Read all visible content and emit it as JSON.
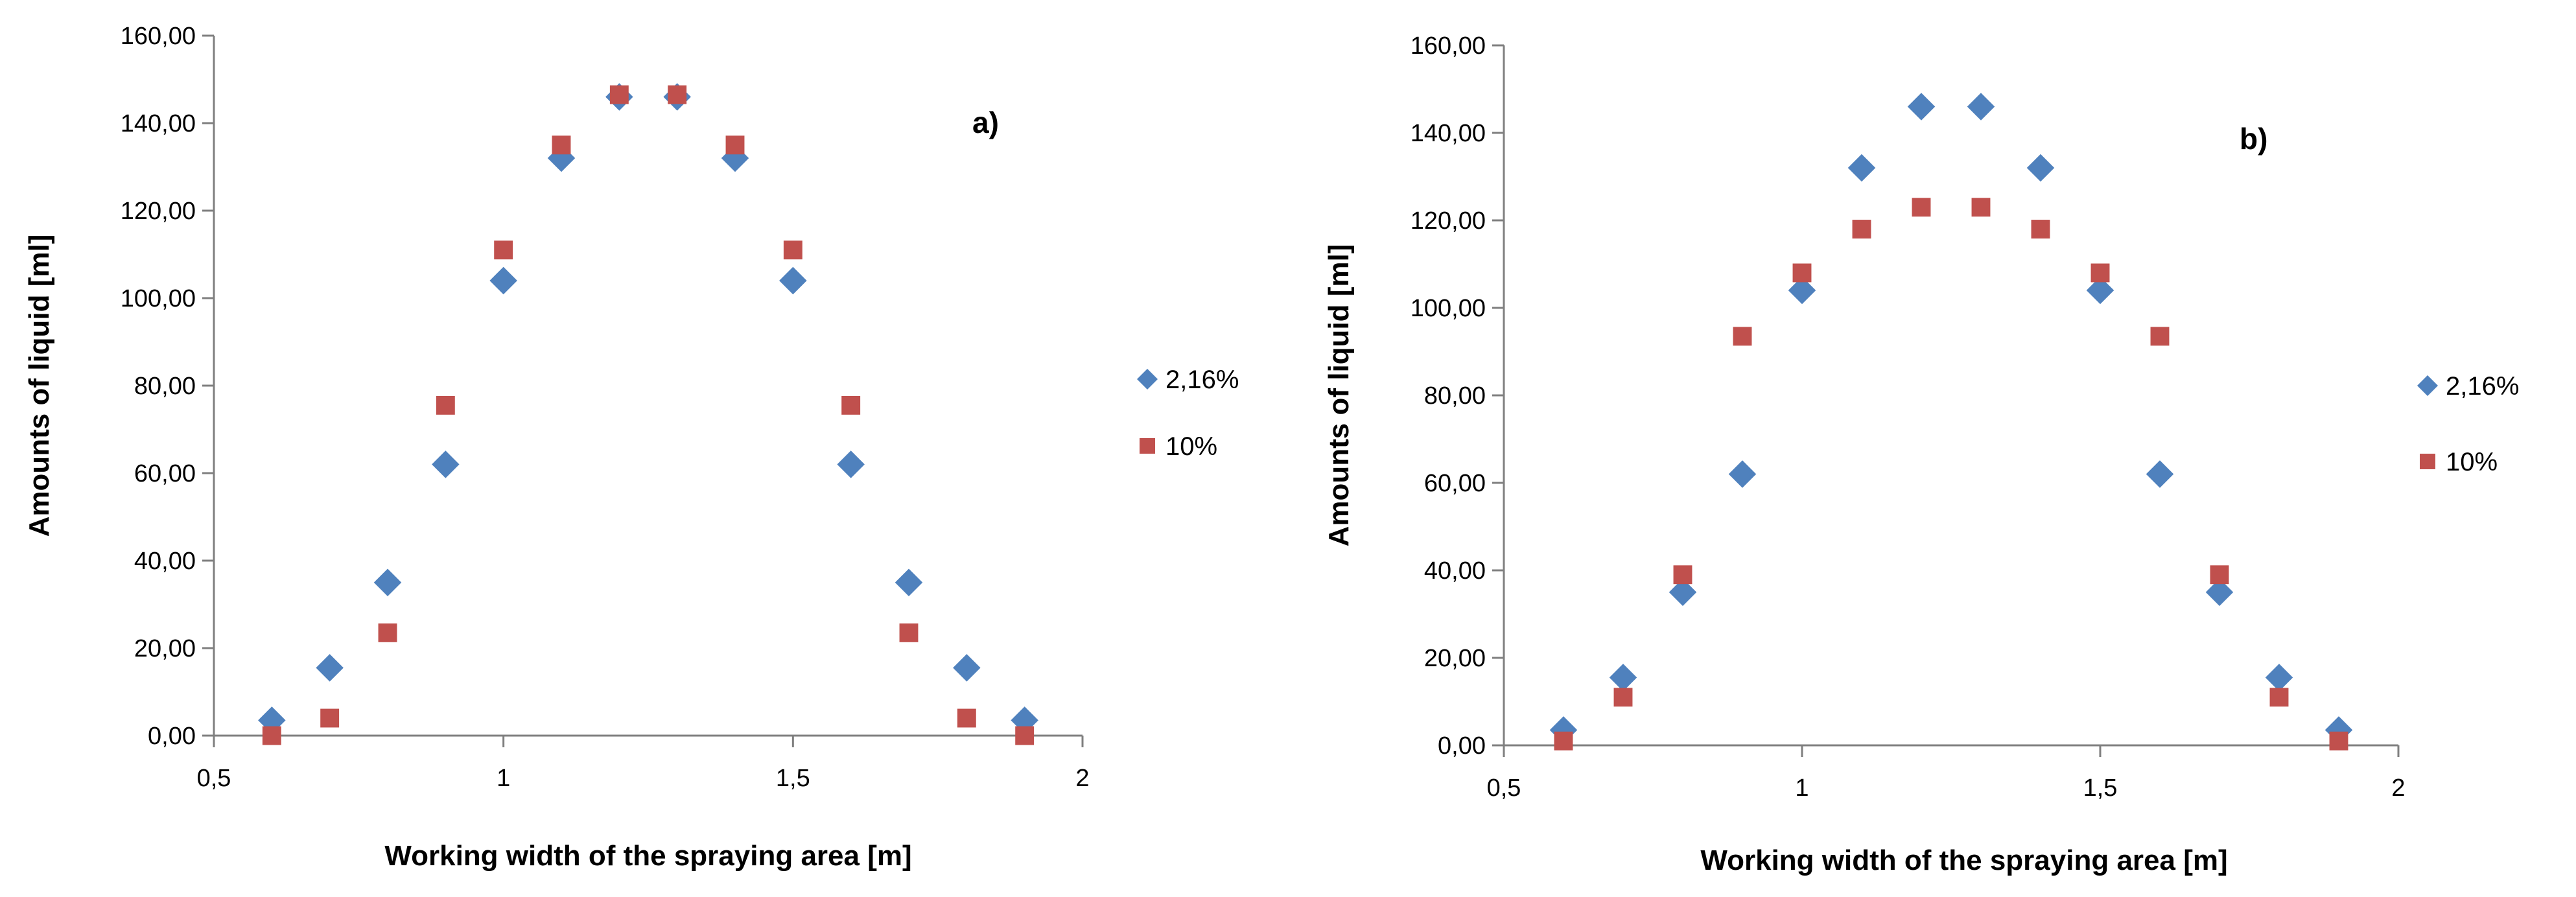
{
  "chart_data": [
    {
      "type": "scatter",
      "panel_label": "a)",
      "xlabel": "Working width of the spraying area [m]",
      "ylabel": "Amounts of liquid [ml]",
      "xlim": [
        0.5,
        2
      ],
      "ylim": [
        0,
        160
      ],
      "xticks": [
        "0,5",
        "1",
        "1,5",
        "2"
      ],
      "yticks": [
        "0,00",
        "20,00",
        "40,00",
        "60,00",
        "80,00",
        "100,00",
        "120,00",
        "140,00",
        "160,00"
      ],
      "legend_position": "right",
      "series": [
        {
          "name": "2,16%",
          "marker": "diamond",
          "color": "#4F81BD",
          "x": [
            0.6,
            0.7,
            0.8,
            0.9,
            1.0,
            1.1,
            1.2,
            1.3,
            1.4,
            1.5,
            1.6,
            1.7,
            1.8,
            1.9
          ],
          "y": [
            3.5,
            15.5,
            35,
            62,
            104,
            132,
            146,
            146,
            132,
            104,
            62,
            35,
            15.5,
            3.5
          ]
        },
        {
          "name": "10%",
          "marker": "square",
          "color": "#C0504D",
          "x": [
            0.6,
            0.7,
            0.8,
            0.9,
            1.0,
            1.1,
            1.2,
            1.3,
            1.4,
            1.5,
            1.6,
            1.7,
            1.8,
            1.9
          ],
          "y": [
            0,
            4,
            23.5,
            75.5,
            111,
            135,
            146.5,
            146.5,
            135,
            111,
            75.5,
            23.5,
            4,
            0
          ]
        }
      ]
    },
    {
      "type": "scatter",
      "panel_label": "b)",
      "xlabel": "Working width of the spraying area [m]",
      "ylabel": "Amounts of liquid [ml]",
      "xlim": [
        0.5,
        2
      ],
      "ylim": [
        0,
        160
      ],
      "xticks": [
        "0,5",
        "1",
        "1,5",
        "2"
      ],
      "yticks": [
        "0,00",
        "20,00",
        "40,00",
        "60,00",
        "80,00",
        "100,00",
        "120,00",
        "140,00",
        "160,00"
      ],
      "legend_position": "right",
      "series": [
        {
          "name": "2,16%",
          "marker": "diamond",
          "color": "#4F81BD",
          "x": [
            0.6,
            0.7,
            0.8,
            0.9,
            1.0,
            1.1,
            1.2,
            1.3,
            1.4,
            1.5,
            1.6,
            1.7,
            1.8,
            1.9
          ],
          "y": [
            3.5,
            15.5,
            35,
            62,
            104,
            132,
            146,
            146,
            132,
            104,
            62,
            35,
            15.5,
            3.5
          ]
        },
        {
          "name": "10%",
          "marker": "square",
          "color": "#C0504D",
          "x": [
            0.6,
            0.7,
            0.8,
            0.9,
            1.0,
            1.1,
            1.2,
            1.3,
            1.4,
            1.5,
            1.6,
            1.7,
            1.8,
            1.9
          ],
          "y": [
            1,
            11,
            39,
            93.5,
            108,
            118,
            123,
            123,
            118,
            108,
            93.5,
            39,
            11,
            1
          ]
        }
      ]
    }
  ]
}
